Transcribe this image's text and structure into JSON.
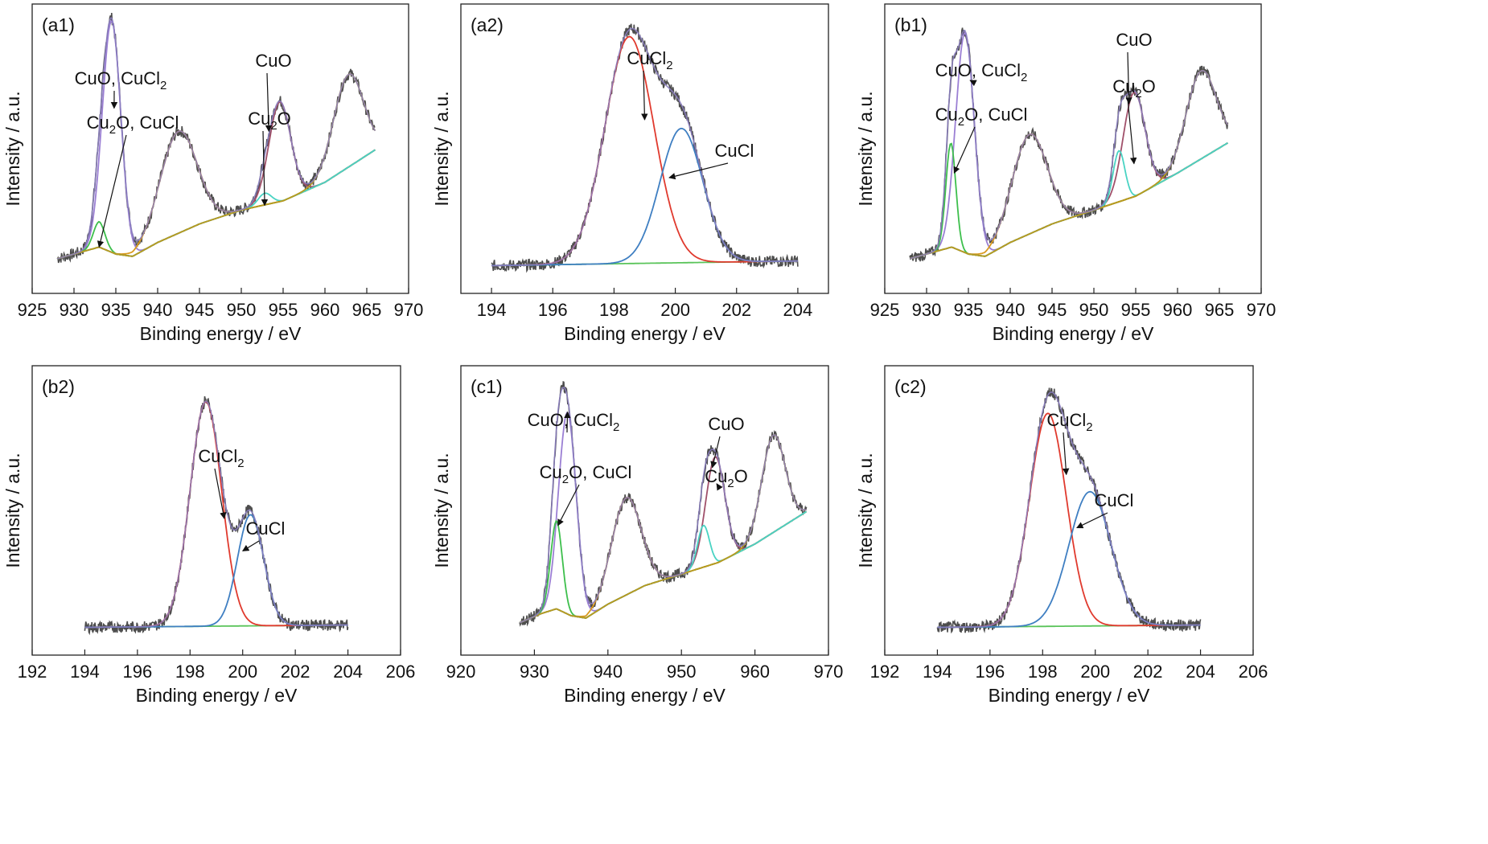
{
  "chart_data": [
    {
      "type": "line",
      "panel_label": "(a1)",
      "xlabel": "Binding energy / eV",
      "ylabel": "Intensity / a.u.",
      "xlim": [
        925,
        970
      ],
      "x_ticks": [
        925,
        930,
        935,
        940,
        945,
        950,
        955,
        960,
        965,
        970
      ],
      "ylim": [
        0,
        1.15
      ],
      "data_x": [
        928,
        966
      ],
      "background": [
        [
          928,
          0.05
        ],
        [
          931,
          0.08
        ],
        [
          933,
          0.1
        ],
        [
          935,
          0.07
        ],
        [
          937,
          0.06
        ],
        [
          940,
          0.12
        ],
        [
          945,
          0.2
        ],
        [
          950,
          0.26
        ],
        [
          955,
          0.3
        ],
        [
          960,
          0.38
        ],
        [
          966,
          0.52
        ]
      ],
      "peaks": [
        {
          "name": "CuO, CuCl2",
          "center": 934.5,
          "height": 1.0,
          "width": 1.1,
          "color": "#9b7fd4"
        },
        {
          "name": "Cu2O, CuCl",
          "center": 933.0,
          "height": 0.11,
          "width": 0.7,
          "color": "#3dbf4c"
        },
        {
          "name": "satellite 942",
          "center": 942.5,
          "height": 0.44,
          "width": 2.2,
          "color": "#d99a1f"
        },
        {
          "name": "CuO",
          "center": 954.6,
          "height": 0.43,
          "width": 1.3,
          "color": "#a0506a"
        },
        {
          "name": "Cu2O",
          "center": 952.8,
          "height": 0.05,
          "width": 0.8,
          "color": "#49d3c3"
        },
        {
          "name": "satellite 962",
          "center": 962.8,
          "height": 0.4,
          "width": 1.8,
          "color": "#b89a1e"
        }
      ],
      "annotations": [
        {
          "text": "CuO, CuCl",
          "sub": "2",
          "target_x": 934.8,
          "target_y": 0.7
        },
        {
          "text": "Cu",
          "sub": "2",
          "tail": "O, CuCl",
          "target_x": 933.0,
          "target_y": 0.1
        },
        {
          "text": "CuO",
          "target_x": 953.3,
          "target_y": 0.6
        },
        {
          "text": "Cu",
          "sub": "2",
          "tail": "O",
          "target_x": 952.8,
          "target_y": 0.28
        }
      ]
    },
    {
      "type": "line",
      "panel_label": "(a2)",
      "xlabel": "Binding energy / eV",
      "ylabel": "Intensity / a.u.",
      "xlim": [
        193,
        205
      ],
      "x_ticks": [
        194,
        196,
        198,
        200,
        202,
        204
      ],
      "ylim": [
        0,
        1.15
      ],
      "data_x": [
        194,
        204
      ],
      "background": [
        [
          194,
          0.02
        ],
        [
          204,
          0.04
        ]
      ],
      "peaks": [
        {
          "name": "CuCl2",
          "center": 198.5,
          "height": 0.98,
          "width": 0.8,
          "color": "#e03a2e"
        },
        {
          "name": "CuCl",
          "center": 200.2,
          "height": 0.58,
          "width": 0.7,
          "color": "#3f7fc2"
        }
      ],
      "annotations": [
        {
          "text": "CuCl",
          "sub": "2",
          "target_x": 199.0,
          "target_y": 0.65
        },
        {
          "text": "CuCl",
          "target_x": 199.8,
          "target_y": 0.4
        }
      ]
    },
    {
      "type": "line",
      "panel_label": "(b1)",
      "xlabel": "Binding energy / eV",
      "ylabel": "Intensity / a.u.",
      "xlim": [
        925,
        970
      ],
      "x_ticks": [
        925,
        930,
        935,
        940,
        945,
        950,
        955,
        960,
        965,
        970
      ],
      "ylim": [
        0,
        1.15
      ],
      "data_x": [
        928,
        966
      ],
      "background": [
        [
          928,
          0.05
        ],
        [
          931,
          0.08
        ],
        [
          933,
          0.1
        ],
        [
          935,
          0.07
        ],
        [
          937,
          0.06
        ],
        [
          940,
          0.12
        ],
        [
          945,
          0.2
        ],
        [
          950,
          0.26
        ],
        [
          955,
          0.32
        ],
        [
          960,
          0.42
        ],
        [
          966,
          0.55
        ]
      ],
      "peaks": [
        {
          "name": "CuO, CuCl2",
          "center": 934.6,
          "height": 0.95,
          "width": 1.1,
          "color": "#9b7fd4"
        },
        {
          "name": "Cu2O, CuCl",
          "center": 932.9,
          "height": 0.45,
          "width": 0.6,
          "color": "#3dbf4c"
        },
        {
          "name": "satellite 942",
          "center": 942.3,
          "height": 0.43,
          "width": 2.1,
          "color": "#d99a1f"
        },
        {
          "name": "CuO",
          "center": 954.8,
          "height": 0.45,
          "width": 1.3,
          "color": "#a0506a"
        },
        {
          "name": "Cu2O",
          "center": 953.0,
          "height": 0.22,
          "width": 0.7,
          "color": "#49d3c3"
        },
        {
          "name": "satellite 962",
          "center": 962.8,
          "height": 0.38,
          "width": 1.8,
          "color": "#b89a1e"
        }
      ],
      "annotations": [
        {
          "text": "CuO, CuCl",
          "sub": "2",
          "target_x": 935.2,
          "target_y": 0.82
        },
        {
          "text": "Cu",
          "sub": "2",
          "tail": "O, CuCl",
          "target_x": 933.3,
          "target_y": 0.42
        },
        {
          "text": "CuO",
          "target_x": 954.2,
          "target_y": 0.72
        },
        {
          "text": "Cu",
          "sub": "2",
          "tail": "O",
          "target_x": 954.8,
          "target_y": 0.46
        }
      ]
    },
    {
      "type": "line",
      "panel_label": "(b2)",
      "xlabel": "Binding energy / eV",
      "ylabel": "Intensity / a.u.",
      "xlim": [
        192,
        206
      ],
      "x_ticks": [
        192,
        194,
        196,
        198,
        200,
        202,
        204,
        206
      ],
      "ylim": [
        0,
        1.15
      ],
      "data_x": [
        194,
        204
      ],
      "background": [
        [
          194,
          0.02
        ],
        [
          204,
          0.03
        ]
      ],
      "peaks": [
        {
          "name": "CuCl2",
          "center": 198.6,
          "height": 0.97,
          "width": 0.6,
          "color": "#e03a2e"
        },
        {
          "name": "CuCl",
          "center": 200.3,
          "height": 0.48,
          "width": 0.5,
          "color": "#3f7fc2"
        }
      ],
      "annotations": [
        {
          "text": "CuCl",
          "sub": "2",
          "target_x": 199.3,
          "target_y": 0.49
        },
        {
          "text": "CuCl",
          "target_x": 200.0,
          "target_y": 0.35
        }
      ]
    },
    {
      "type": "line",
      "panel_label": "(c1)",
      "xlabel": "Binding energy / eV",
      "ylabel": "Intensity / a.u.",
      "xlim": [
        920,
        970
      ],
      "x_ticks": [
        920,
        930,
        940,
        950,
        960,
        970
      ],
      "ylim": [
        0,
        1.15
      ],
      "data_x": [
        928,
        967
      ],
      "background": [
        [
          928,
          0.04
        ],
        [
          931,
          0.08
        ],
        [
          933,
          0.1
        ],
        [
          935,
          0.07
        ],
        [
          937,
          0.06
        ],
        [
          940,
          0.12
        ],
        [
          945,
          0.2
        ],
        [
          950,
          0.25
        ],
        [
          955,
          0.3
        ],
        [
          960,
          0.38
        ],
        [
          967,
          0.52
        ]
      ],
      "peaks": [
        {
          "name": "CuO, CuCl2",
          "center": 934.5,
          "height": 0.87,
          "width": 1.2,
          "color": "#9b7fd4"
        },
        {
          "name": "Cu2O, CuCl",
          "center": 933.0,
          "height": 0.38,
          "width": 0.8,
          "color": "#3dbf4c"
        },
        {
          "name": "satellite 942",
          "center": 942.5,
          "height": 0.42,
          "width": 2.0,
          "color": "#d99a1f"
        },
        {
          "name": "CuO",
          "center": 954.6,
          "height": 0.46,
          "width": 1.3,
          "color": "#a0506a"
        },
        {
          "name": "Cu2O",
          "center": 953.0,
          "height": 0.18,
          "width": 0.8,
          "color": "#49d3c3"
        },
        {
          "name": "satellite 962",
          "center": 962.5,
          "height": 0.42,
          "width": 1.6,
          "color": "#b89a1e"
        }
      ],
      "annotations": [
        {
          "text": "CuO, CuCl",
          "sub": "2",
          "target_x": 934.5,
          "target_y": 0.95
        },
        {
          "text": "Cu",
          "sub": "2",
          "tail": "O, CuCl",
          "target_x": 933.2,
          "target_y": 0.46
        },
        {
          "text": "CuO",
          "target_x": 954.2,
          "target_y": 0.71
        },
        {
          "text": "Cu",
          "sub": "2",
          "tail": "O",
          "target_x": 954.8,
          "target_y": 0.64
        }
      ]
    },
    {
      "type": "line",
      "panel_label": "(c2)",
      "xlabel": "Binding energy / eV",
      "ylabel": "Intensity / a.u.",
      "xlim": [
        192,
        206
      ],
      "x_ticks": [
        192,
        194,
        196,
        198,
        200,
        202,
        204,
        206
      ],
      "ylim": [
        0,
        1.15
      ],
      "data_x": [
        194,
        204
      ],
      "background": [
        [
          194,
          0.02
        ],
        [
          204,
          0.03
        ]
      ],
      "peaks": [
        {
          "name": "CuCl2",
          "center": 198.2,
          "height": 0.92,
          "width": 0.7,
          "color": "#e03a2e"
        },
        {
          "name": "CuCl",
          "center": 199.8,
          "height": 0.58,
          "width": 0.8,
          "color": "#3f7fc2"
        }
      ],
      "annotations": [
        {
          "text": "CuCl",
          "sub": "2",
          "target_x": 198.9,
          "target_y": 0.68
        },
        {
          "text": "CuCl",
          "target_x": 199.3,
          "target_y": 0.45
        }
      ]
    }
  ],
  "colors": {
    "raw": "#4d4d4d",
    "envelope": "#8a7dbf",
    "background": "#9a9a20",
    "cucl2_bg": "#5ac45a",
    "axis": "#222222"
  }
}
